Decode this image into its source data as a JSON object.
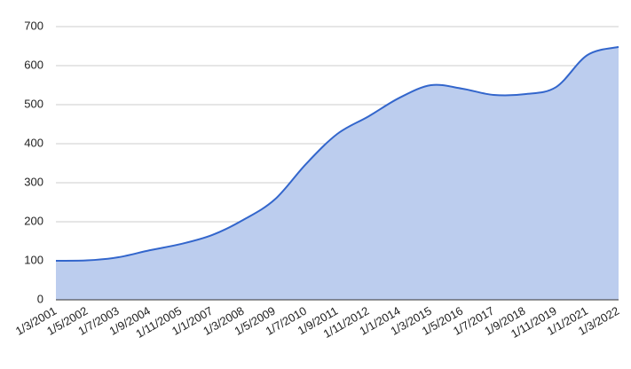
{
  "chart_data": {
    "type": "area",
    "categories": [
      "1/3/2001",
      "1/5/2002",
      "1/7/2003",
      "1/9/2004",
      "1/11/2005",
      "1/1/2007",
      "1/3/2008",
      "1/5/2009",
      "1/7/2010",
      "1/9/2011",
      "1/11/2012",
      "1/1/2014",
      "1/3/2015",
      "1/5/2016",
      "1/7/2017",
      "1/9/2018",
      "1/11/2019",
      "1/1/2021",
      "1/3/2022"
    ],
    "values": [
      100,
      101,
      109,
      127,
      143,
      166,
      205,
      257,
      348,
      425,
      470,
      518,
      550,
      541,
      525,
      527,
      545,
      627,
      648
    ],
    "color": "#3366cc",
    "fill": "#bccdee",
    "ylim": [
      0,
      700
    ],
    "yticks": [
      0,
      100,
      200,
      300,
      400,
      500,
      600,
      700
    ],
    "grid": true
  }
}
